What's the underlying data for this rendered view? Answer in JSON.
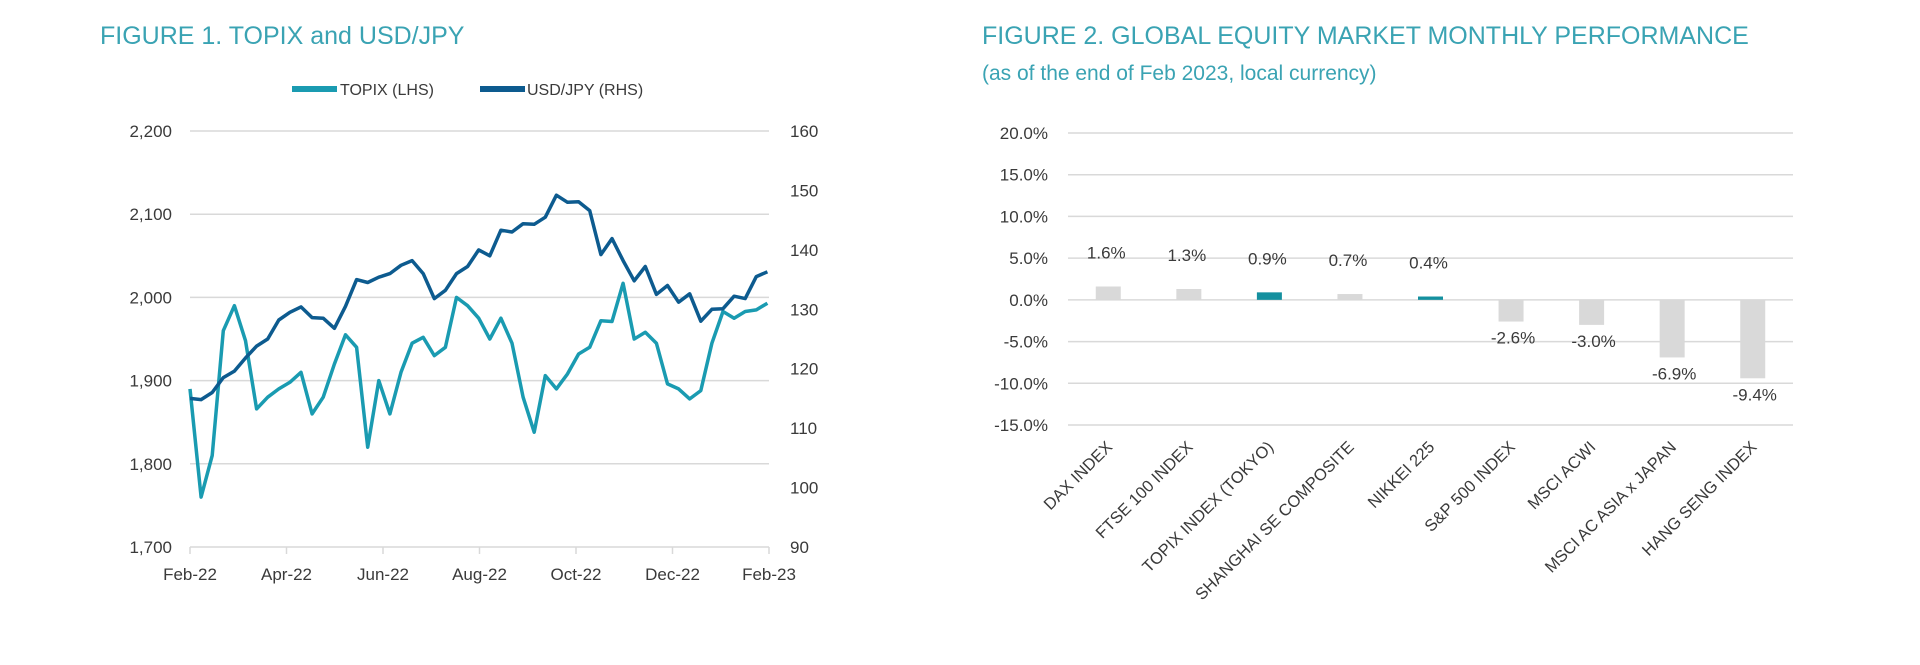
{
  "colors": {
    "title": "#3aa3b3",
    "topix": "#1a9bb1",
    "usdjpy": "#0d5b8f",
    "bar_default": "#d9d9d9",
    "bar_highlight": "#14909f",
    "grid": "#d9d9d9"
  },
  "chart_data": [
    {
      "type": "line",
      "title": "FIGURE 1. TOPIX and USD/JPY",
      "legend_position": "top",
      "grid": true,
      "x_ticks": [
        "Feb-22",
        "Apr-22",
        "Jun-22",
        "Aug-22",
        "Oct-22",
        "Dec-22",
        "Feb-23"
      ],
      "x_range": [
        "2022-02-01",
        "2023-02-01"
      ],
      "y_left": {
        "ticks": [
          "1,700",
          "1,800",
          "1,900",
          "2,000",
          "2,100",
          "2,200"
        ],
        "range": [
          1700,
          2200
        ]
      },
      "y_right": {
        "ticks": [
          "90",
          "100",
          "110",
          "120",
          "130",
          "140",
          "150",
          "160"
        ],
        "range": [
          90,
          160
        ]
      },
      "x": [
        "2022-02-01",
        "2022-02-08",
        "2022-02-15",
        "2022-02-22",
        "2022-03-01",
        "2022-03-08",
        "2022-03-15",
        "2022-03-22",
        "2022-03-29",
        "2022-04-05",
        "2022-04-12",
        "2022-04-19",
        "2022-04-26",
        "2022-05-03",
        "2022-05-10",
        "2022-05-17",
        "2022-05-24",
        "2022-05-31",
        "2022-06-07",
        "2022-06-14",
        "2022-06-21",
        "2022-06-28",
        "2022-07-05",
        "2022-07-12",
        "2022-07-19",
        "2022-07-26",
        "2022-08-02",
        "2022-08-09",
        "2022-08-16",
        "2022-08-23",
        "2022-08-30",
        "2022-09-06",
        "2022-09-13",
        "2022-09-20",
        "2022-09-27",
        "2022-10-04",
        "2022-10-11",
        "2022-10-18",
        "2022-10-25",
        "2022-11-01",
        "2022-11-08",
        "2022-11-15",
        "2022-11-22",
        "2022-11-29",
        "2022-12-06",
        "2022-12-13",
        "2022-12-20",
        "2022-12-27",
        "2023-01-03",
        "2023-01-10",
        "2023-01-17",
        "2023-01-24",
        "2023-01-31"
      ],
      "series": [
        {
          "name": "TOPIX (LHS)",
          "axis": "left",
          "values": [
            1890,
            1760,
            1810,
            1960,
            1990,
            1948,
            1866,
            1880,
            1890,
            1898,
            1910,
            1860,
            1880,
            1920,
            1955,
            1940,
            1820,
            1900,
            1860,
            1910,
            1945,
            1952,
            1930,
            1940,
            2000,
            1990,
            1975,
            1950,
            1975,
            1945,
            1880,
            1838,
            1906,
            1890,
            1908,
            1932,
            1940,
            1972,
            1971,
            2017,
            1950,
            1958,
            1945,
            1896,
            1890,
            1878,
            1888,
            1945,
            1983,
            1975,
            1983,
            1985,
            1993
          ]
        },
        {
          "name": "USD/JPY (RHS)",
          "axis": "right",
          "values": [
            115.0,
            114.8,
            116.0,
            118.5,
            119.6,
            121.8,
            123.8,
            125.0,
            128.2,
            129.5,
            130.4,
            128.6,
            128.5,
            126.8,
            130.5,
            135.0,
            134.5,
            135.4,
            136.0,
            137.4,
            138.2,
            136.0,
            131.8,
            133.2,
            136.0,
            137.2,
            140.0,
            139.0,
            143.3,
            143.0,
            144.4,
            144.3,
            145.5,
            149.2,
            148.0,
            148.1,
            146.6,
            139.2,
            141.9,
            138.2,
            134.8,
            137.2,
            132.5,
            134.0,
            131.2,
            132.6,
            128.0,
            130.0,
            130.1,
            132.2,
            131.8,
            135.5,
            136.3
          ]
        }
      ]
    },
    {
      "type": "bar",
      "title": "FIGURE 2. GLOBAL EQUITY MARKET MONTHLY PERFORMANCE",
      "subtitle": "(as of the end of Feb 2023, local currency)",
      "grid": true,
      "y_ticks": [
        "-15.0%",
        "-10.0%",
        "-5.0%",
        "0.0%",
        "5.0%",
        "10.0%",
        "15.0%",
        "20.0%"
      ],
      "ylim": [
        -15,
        20
      ],
      "categories": [
        "DAX INDEX",
        "FTSE 100 INDEX",
        "TOPIX INDEX (TOKYO)",
        "SHANGHAI SE COMPOSITE",
        "NIKKEI 225",
        "S&P 500 INDEX",
        "MSCI ACWI",
        "MSCI AC ASIA x JAPAN",
        "HANG SENG INDEX"
      ],
      "values": [
        1.6,
        1.3,
        0.9,
        0.7,
        0.4,
        -2.6,
        -3.0,
        -6.9,
        -9.4
      ],
      "data_labels": [
        "1.6%",
        "1.3%",
        "0.9%",
        "0.7%",
        "0.4%",
        "-2.6%",
        "-3.0%",
        "-6.9%",
        "-9.4%"
      ],
      "highlighted": [
        "TOPIX INDEX (TOKYO)",
        "NIKKEI 225"
      ]
    }
  ]
}
